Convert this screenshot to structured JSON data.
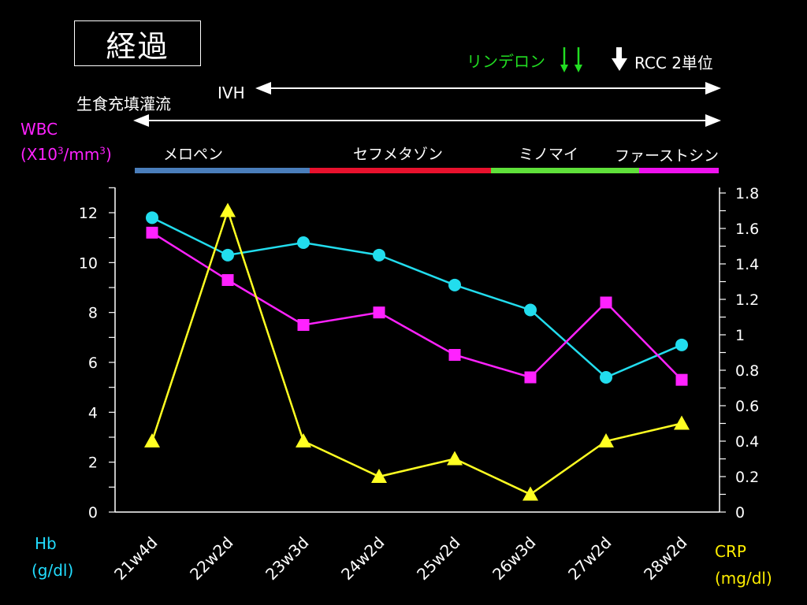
{
  "slide": {
    "title": "経過",
    "linderon_label": "リンデロン",
    "rcc_label": "RCC 2単位",
    "ivh_label": "IVH",
    "diet_label": "生食充填灌流",
    "wbc_label": "WBC",
    "wbc_unit_prefix": "(X10",
    "wbc_unit_sup1": "3",
    "wbc_unit_mid": "/mm",
    "wbc_unit_sup2": "3",
    "wbc_unit_suffix": ")",
    "hb_label": "Hb",
    "hb_unit": "(g/dl)",
    "crp_label": "CRP",
    "crp_unit": "(mg/dl)",
    "drugs": [
      {
        "name": "メロペン",
        "color": "#4a7ebb"
      },
      {
        "name": "セフメタゾン",
        "color": "#e8112d"
      },
      {
        "name": "ミノマイ",
        "color": "#5fe03a"
      },
      {
        "name": "ファーストシン",
        "color": "#ee11ee"
      }
    ],
    "colors": {
      "linderon": "#22dd22",
      "wbc_label": "#ff22ff",
      "hb_label": "#22ddff",
      "crp_label": "#ffee00"
    }
  },
  "chart_data": {
    "type": "line",
    "categories": [
      "21w4d",
      "22w2d",
      "23w3d",
      "24w2d",
      "25w2d",
      "26w3d",
      "27w2d",
      "28w2d"
    ],
    "left_axis": {
      "ylim": [
        0,
        13
      ],
      "ticks": [
        0,
        2,
        4,
        6,
        8,
        10,
        12
      ]
    },
    "right_axis": {
      "ylim": [
        0,
        1.9
      ],
      "ticks": [
        0,
        0.2,
        0.4,
        0.6,
        0.8,
        1,
        1.2,
        1.4,
        1.6,
        1.8
      ]
    },
    "series": [
      {
        "key": "hb",
        "axis": "left",
        "marker": "circle",
        "color": "#22ddee",
        "values": [
          11.8,
          10.3,
          10.8,
          10.3,
          9.1,
          8.1,
          5.4,
          6.7
        ]
      },
      {
        "key": "wbc",
        "axis": "left",
        "marker": "square",
        "color": "#ff22ff",
        "values": [
          11.2,
          9.3,
          7.5,
          8.0,
          6.3,
          5.4,
          8.4,
          5.3
        ]
      },
      {
        "key": "crp",
        "axis": "right",
        "marker": "triangle",
        "color": "#ffff22",
        "values": [
          0.4,
          1.7,
          0.4,
          0.2,
          0.3,
          0.1,
          0.4,
          0.5
        ]
      }
    ]
  }
}
